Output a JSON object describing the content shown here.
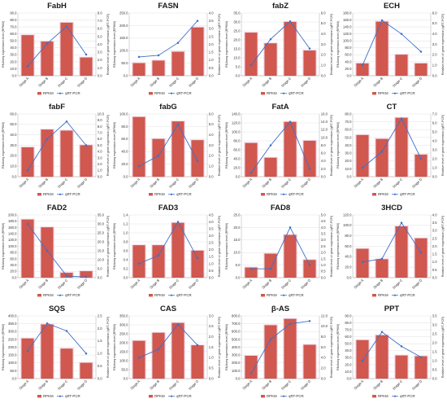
{
  "colors": {
    "bar": "#d0584f",
    "bar_edge": "#b13f38",
    "glow": "#f6d6e4",
    "line": "#3d6fc9",
    "marker": "#3d6fc9",
    "grid": "#d9d9d9",
    "axis": "#9a9a9a"
  },
  "legend": {
    "bar": "RPKM",
    "line": "qRT-PCR"
  },
  "chart_data": [
    {
      "type": "bar+line",
      "title": "FabH",
      "categories": [
        "Stage A",
        "Stage B",
        "Stage C",
        "Stage D"
      ],
      "ylabel": "RNAseq expression level (RPKM)",
      "y2label": "Relative level of gene expression (qRT-PCR)",
      "ylim": [
        0,
        90
      ],
      "yticks": [
        "0.0",
        "10.0",
        "20.0",
        "30.0",
        "40.0",
        "50.0",
        "60.0",
        "70.0",
        "80.0",
        "90.0"
      ],
      "y2lim": [
        0,
        8
      ],
      "y2ticks": [
        "0.0",
        "1.0",
        "2.0",
        "3.0",
        "4.0",
        "5.0",
        "6.0",
        "7.0",
        "8.0"
      ],
      "series": [
        {
          "name": "RPKM",
          "values": [
            58,
            49,
            76,
            26
          ]
        },
        {
          "name": "qRT-PCR",
          "values": [
            1.2,
            4.1,
            6.3,
            2.7
          ]
        }
      ]
    },
    {
      "type": "bar+line",
      "title": "FASN",
      "categories": [
        "Stage A",
        "Stage B",
        "Stage C",
        "Stage D"
      ],
      "ylabel": "RNAseq expression level (RPKM)",
      "y2label": "Relative level of gene expression (qRT-PCR)",
      "ylim": [
        0,
        250
      ],
      "yticks": [
        "0.0",
        "50.0",
        "100.0",
        "150.0",
        "200.0",
        "250.0"
      ],
      "y2lim": [
        0,
        4
      ],
      "y2ticks": [
        "0.0",
        "0.5",
        "1.0",
        "1.5",
        "2.0",
        "2.5",
        "3.0",
        "3.5",
        "4.0"
      ],
      "series": [
        {
          "name": "RPKM",
          "values": [
            50,
            60,
            95,
            192
          ]
        },
        {
          "name": "qRT-PCR",
          "values": [
            1.2,
            1.3,
            2.1,
            3.5
          ]
        }
      ]
    },
    {
      "type": "bar+line",
      "title": "fabZ",
      "categories": [
        "Stage A",
        "Stage B",
        "Stage C",
        "Stage D"
      ],
      "ylabel": "RNAseq expression level (RPKM)",
      "y2label": "Relative level of gene expression (qRT-PCR)",
      "ylim": [
        0,
        35
      ],
      "yticks": [
        "0.0",
        "5.0",
        "10.0",
        "15.0",
        "20.0",
        "25.0",
        "30.0",
        "35.0"
      ],
      "y2lim": [
        0,
        6
      ],
      "y2ticks": [
        "0.0",
        "1.0",
        "2.0",
        "3.0",
        "4.0",
        "5.0",
        "6.0"
      ],
      "series": [
        {
          "name": "RPKM",
          "values": [
            24,
            18,
            30,
            14
          ]
        },
        {
          "name": "qRT-PCR",
          "values": [
            1.0,
            3.5,
            5.2,
            2.6
          ]
        }
      ]
    },
    {
      "type": "bar+line",
      "title": "ECH",
      "categories": [
        "Stage A",
        "Stage B",
        "Stage C",
        "Stage D"
      ],
      "ylabel": "RNAseq expression level (RPKM)",
      "y2label": "Relative level of gene expression (qRT-PCR)",
      "ylim": [
        0,
        180
      ],
      "yticks": [
        "0.0",
        "20.0",
        "40.0",
        "60.0",
        "80.0",
        "100.0",
        "120.0",
        "140.0",
        "160.0",
        "180.0"
      ],
      "y2lim": [
        0,
        6
      ],
      "y2ticks": [
        "0.0",
        "1.0",
        "2.0",
        "3.0",
        "4.0",
        "5.0",
        "6.0"
      ],
      "series": [
        {
          "name": "RPKM",
          "values": [
            35,
            155,
            60,
            35
          ]
        },
        {
          "name": "qRT-PCR",
          "values": [
            1.0,
            5.3,
            4.0,
            2.3
          ]
        }
      ]
    },
    {
      "type": "bar+line",
      "title": "fabF",
      "categories": [
        "Stage A",
        "Stage B",
        "Stage C",
        "Stage D"
      ],
      "ylabel": "RNAseq expression level (RPKM)",
      "y2label": "Relative level of gene expression (qRT-PCR)",
      "ylim": [
        0,
        60
      ],
      "yticks": [
        "0.0",
        "10.0",
        "20.0",
        "30.0",
        "40.0",
        "50.0",
        "60.0"
      ],
      "y2lim": [
        0,
        10
      ],
      "y2ticks": [
        "0.0",
        "1.0",
        "2.0",
        "3.0",
        "4.0",
        "5.0",
        "6.0",
        "7.0",
        "8.0",
        "9.0",
        "10.0"
      ],
      "series": [
        {
          "name": "RPKM",
          "values": [
            28,
            45,
            44,
            30
          ]
        },
        {
          "name": "qRT-PCR",
          "values": [
            1.0,
            6.0,
            8.8,
            5.0
          ]
        }
      ]
    },
    {
      "type": "bar+line",
      "title": "fabG",
      "categories": [
        "Stage A",
        "Stage B",
        "Stage C",
        "Stage D"
      ],
      "ylabel": "RNAseq expression level (RPKM)",
      "y2label": "Relative level of gene expression (qRT-PCR)",
      "ylim": [
        0,
        100
      ],
      "yticks": [
        "0.0",
        "20.0",
        "40.0",
        "60.0",
        "80.0",
        "100.0"
      ],
      "y2lim": [
        0,
        6
      ],
      "y2ticks": [
        "0.0",
        "1.0",
        "2.0",
        "3.0",
        "4.0",
        "5.0",
        "6.0"
      ],
      "series": [
        {
          "name": "RPKM",
          "values": [
            95,
            60,
            88,
            58
          ]
        },
        {
          "name": "qRT-PCR",
          "values": [
            1.0,
            2.0,
            5.0,
            1.5
          ]
        }
      ]
    },
    {
      "type": "bar+line",
      "title": "FatA",
      "categories": [
        "Stage A",
        "Stage B",
        "Stage C",
        "Stage D"
      ],
      "ylabel": "RNAseq expression level (RPKM)",
      "y2label": "Relative level of gene expression (qRT-PCR)",
      "ylim": [
        0,
        140
      ],
      "yticks": [
        "0.0",
        "20.0",
        "40.0",
        "60.0",
        "80.0",
        "100.0",
        "120.0",
        "140.0"
      ],
      "y2lim": [
        0,
        16
      ],
      "y2ticks": [
        "0.0",
        "2.0",
        "4.0",
        "6.0",
        "8.0",
        "10.0",
        "12.0",
        "14.0",
        "16.0"
      ],
      "series": [
        {
          "name": "RPKM",
          "values": [
            75,
            42,
            122,
            80
          ]
        },
        {
          "name": "qRT-PCR",
          "values": [
            1.0,
            8.0,
            14.0,
            2.0
          ]
        }
      ]
    },
    {
      "type": "bar+line",
      "title": "CT",
      "categories": [
        "Stage A",
        "Stage B",
        "Stage C",
        "Stage D"
      ],
      "ylabel": "RNAseq expression level (RPKM)",
      "y2label": "Relative level of gene expression (qRT-PCR)",
      "ylim": [
        0,
        80
      ],
      "yticks": [
        "0.0",
        "10.0",
        "20.0",
        "30.0",
        "40.0",
        "50.0",
        "60.0",
        "70.0",
        "80.0"
      ],
      "y2lim": [
        0,
        7
      ],
      "y2ticks": [
        "0.0",
        "1.0",
        "2.0",
        "3.0",
        "4.0",
        "5.0",
        "6.0",
        "7.0"
      ],
      "series": [
        {
          "name": "RPKM",
          "values": [
            53,
            48,
            75,
            28
          ]
        },
        {
          "name": "qRT-PCR",
          "values": [
            1.0,
            2.8,
            6.5,
            2.0
          ]
        }
      ]
    },
    {
      "type": "bar+line",
      "title": "FAD2",
      "categories": [
        "Stage A",
        "Stage B",
        "Stage C",
        "Stage D"
      ],
      "ylabel": "RNAseq expression level (RPKM)",
      "y2label": "Relative level of gene expression (qRT-PCR)",
      "ylim": [
        0,
        200
      ],
      "yticks": [
        "0.0",
        "20.0",
        "40.0",
        "60.0",
        "80.0",
        "100.0",
        "120.0",
        "140.0",
        "160.0",
        "180.0",
        "200.0"
      ],
      "y2lim": [
        0,
        35
      ],
      "y2ticks": [
        "0.0",
        "5.0",
        "10.0",
        "15.0",
        "20.0",
        "25.0",
        "30.0",
        "35.0"
      ],
      "series": [
        {
          "name": "RPKM",
          "values": [
            185,
            160,
            15,
            20
          ]
        },
        {
          "name": "qRT-PCR",
          "values": [
            30,
            15,
            1.0,
            0.3
          ]
        }
      ]
    },
    {
      "type": "bar+line",
      "title": "FAD3",
      "categories": [
        "Stage A",
        "Stage B",
        "Stage C",
        "Stage D"
      ],
      "ylabel": "RNAseq expression level (RPKM)",
      "y2label": "Relative level of gene expression (qRT-PCR)",
      "ylim": [
        0,
        1.4
      ],
      "yticks": [
        "0.0",
        "0.2",
        "0.4",
        "0.6",
        "0.8",
        "1.0",
        "1.2",
        "1.4"
      ],
      "y2lim": [
        0,
        4.5
      ],
      "y2ticks": [
        "0.0",
        "0.5",
        "1.0",
        "1.5",
        "2.0",
        "2.5",
        "3.0",
        "3.5",
        "4.0",
        "4.5"
      ],
      "series": [
        {
          "name": "RPKM",
          "values": [
            0.72,
            0.72,
            1.22,
            0.6
          ]
        },
        {
          "name": "qRT-PCR",
          "values": [
            1.0,
            1.6,
            4.0,
            1.4
          ]
        }
      ]
    },
    {
      "type": "bar+line",
      "title": "FAD8",
      "categories": [
        "Stage A",
        "Stage B",
        "Stage C",
        "Stage D"
      ],
      "ylabel": "RNAseq expression level (RPKM)",
      "y2label": "Relative level of gene expression (qRT-PCR)",
      "ylim": [
        0,
        25
      ],
      "yticks": [
        "0.0",
        "5.0",
        "10.0",
        "15.0",
        "20.0",
        "25.0"
      ],
      "y2lim": [
        0,
        5
      ],
      "y2ticks": [
        "0.0",
        "0.5",
        "1.0",
        "1.5",
        "2.0",
        "2.5",
        "3.0",
        "3.5",
        "4.0",
        "4.5",
        "5.0"
      ],
      "series": [
        {
          "name": "RPKM",
          "values": [
            4,
            9.5,
            17,
            7
          ]
        },
        {
          "name": "qRT-PCR",
          "values": [
            0.7,
            0.7,
            4.0,
            1.0
          ]
        }
      ]
    },
    {
      "type": "bar+line",
      "title": "3HCD",
      "categories": [
        "Stage A",
        "Stage B",
        "Stage C",
        "Stage D"
      ],
      "ylabel": "RNAseq expression level (RPKM)",
      "y2label": "Relative level of gene expression (qRT-PCR)",
      "ylim": [
        0,
        120
      ],
      "yticks": [
        "0.0",
        "20.0",
        "40.0",
        "60.0",
        "80.0",
        "100.0",
        "120.0"
      ],
      "y2lim": [
        0,
        4
      ],
      "y2ticks": [
        "0.0",
        "0.5",
        "1.0",
        "1.5",
        "2.0",
        "2.5",
        "3.0",
        "3.5",
        "4.0"
      ],
      "series": [
        {
          "name": "RPKM",
          "values": [
            55,
            35,
            98,
            75
          ]
        },
        {
          "name": "qRT-PCR",
          "values": [
            1.0,
            1.2,
            3.5,
            1.6
          ]
        }
      ]
    },
    {
      "type": "bar+line",
      "title": "SQS",
      "categories": [
        "Stage A",
        "Stage B",
        "Stage C",
        "Stage D"
      ],
      "ylabel": "RNAseq expression level (RPKM)",
      "y2label": "Relative level of gene expression (qRT-PCR)",
      "ylim": [
        0,
        400
      ],
      "yticks": [
        "0.0",
        "50.0",
        "100.0",
        "150.0",
        "200.0",
        "250.0",
        "300.0",
        "350.0",
        "400.0"
      ],
      "y2lim": [
        0,
        2.5
      ],
      "y2ticks": [
        "0.0",
        "0.5",
        "1.0",
        "1.5",
        "2.0",
        "2.5"
      ],
      "series": [
        {
          "name": "RPKM",
          "values": [
            255,
            345,
            190,
            100
          ]
        },
        {
          "name": "qRT-PCR",
          "values": [
            1.1,
            2.2,
            1.9,
            1.0
          ]
        }
      ]
    },
    {
      "type": "bar+line",
      "title": "CAS",
      "categories": [
        "Stage A",
        "Stage B",
        "Stage C",
        "Stage D"
      ],
      "ylabel": "RNAseq expression level (RPKM)",
      "y2label": "Relative level of gene expression (qRT-PCR)",
      "ylim": [
        0,
        350
      ],
      "yticks": [
        "0.0",
        "50.0",
        "100.0",
        "150.0",
        "200.0",
        "250.0",
        "300.0",
        "350.0"
      ],
      "y2lim": [
        0,
        3
      ],
      "y2ticks": [
        "0.0",
        "0.5",
        "1.0",
        "1.5",
        "2.0",
        "2.5",
        "3.0"
      ],
      "series": [
        {
          "name": "RPKM",
          "values": [
            210,
            255,
            310,
            185
          ]
        },
        {
          "name": "qRT-PCR",
          "values": [
            1.0,
            1.4,
            2.6,
            1.6
          ]
        }
      ]
    },
    {
      "type": "bar+line",
      "title": "β-AS",
      "categories": [
        "Stage A",
        "Stage B",
        "Stage C",
        "Stage D"
      ],
      "ylabel": "RNAseq expression level (RPKM)",
      "y2label": "Relative level of gene expression (qRT-PCR)",
      "ylim": [
        0,
        800
      ],
      "yticks": [
        "0.0",
        "100.0",
        "200.0",
        "300.0",
        "400.0",
        "500.0",
        "600.0",
        "700.0",
        "800.0"
      ],
      "y2lim": [
        0,
        12
      ],
      "y2ticks": [
        "0.0",
        "2.0",
        "4.0",
        "6.0",
        "8.0",
        "10.0",
        "12.0"
      ],
      "series": [
        {
          "name": "RPKM",
          "values": [
            290,
            680,
            760,
            430
          ]
        },
        {
          "name": "qRT-PCR",
          "values": [
            1.0,
            7.5,
            10.5,
            11.0
          ]
        }
      ]
    },
    {
      "type": "bar+line",
      "title": "PPT",
      "categories": [
        "Stage A",
        "Stage B",
        "Stage C",
        "Stage D"
      ],
      "ylabel": "RNAseq expression level (RPKM)",
      "y2label": "Relative level of gene expression (qRT-PCR)",
      "ylim": [
        0,
        90
      ],
      "yticks": [
        "0.0",
        "10.0",
        "20.0",
        "30.0",
        "40.0",
        "50.0",
        "60.0",
        "70.0",
        "80.0",
        "90.0"
      ],
      "y2lim": [
        0,
        3.5
      ],
      "y2ticks": [
        "0.0",
        "0.5",
        "1.0",
        "1.5",
        "2.0",
        "2.5",
        "3.0",
        "3.5"
      ],
      "series": [
        {
          "name": "RPKM",
          "values": [
            55,
            62,
            33,
            32
          ]
        },
        {
          "name": "qRT-PCR",
          "values": [
            1.0,
            2.6,
            1.8,
            1.2
          ]
        }
      ]
    }
  ]
}
